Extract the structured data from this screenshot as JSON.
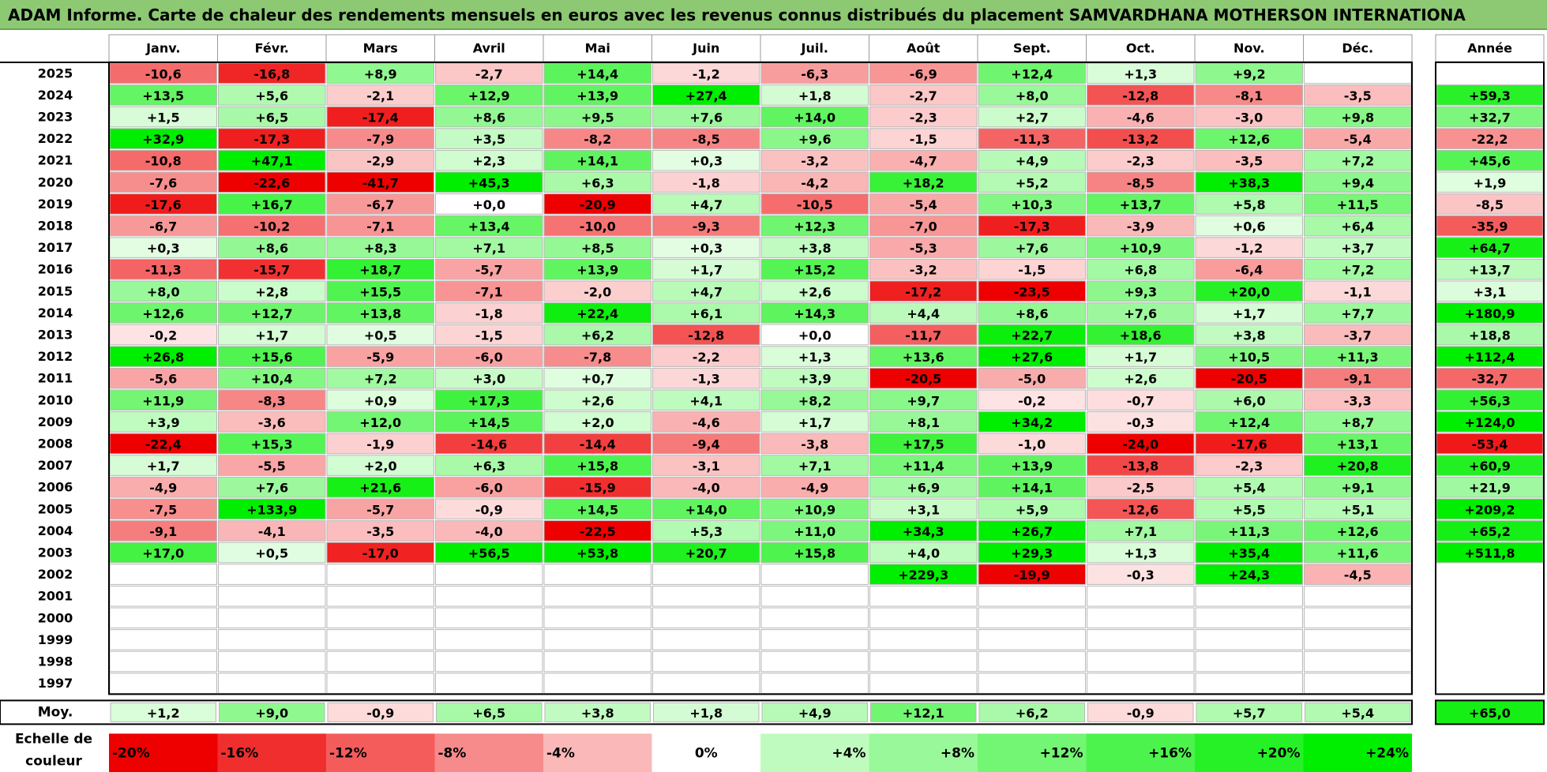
{
  "title": "ADAM Informe. Carte de chaleur des rendements mensuels en euros avec les revenus connus distribués du placement SAMVARDHANA MOTHERSON INTERNATIONA",
  "colors": {
    "positive": "#00ee00",
    "negative": "#ee0000",
    "neutral": "#ffffff",
    "title_bg": "#8cc972"
  },
  "chart_data": {
    "type": "heatmap",
    "title": "ADAM Informe. Carte de chaleur des rendements mensuels en euros avec les revenus connus distribués du placement SAMVARDHANA MOTHERSON INTERNATIONA",
    "months": [
      "Janv.",
      "Févr.",
      "Mars",
      "Avril",
      "Mai",
      "Juin",
      "Juil.",
      "Août",
      "Sept.",
      "Oct.",
      "Nov.",
      "Déc."
    ],
    "year_label": "Année",
    "avg_label": "Moy.",
    "years": [
      "2025",
      "2024",
      "2023",
      "2022",
      "2021",
      "2020",
      "2019",
      "2018",
      "2017",
      "2016",
      "2015",
      "2014",
      "2013",
      "2012",
      "2011",
      "2010",
      "2009",
      "2008",
      "2007",
      "2006",
      "2005",
      "2004",
      "2003",
      "2002",
      "2001",
      "2000",
      "1999",
      "1998",
      "1997"
    ],
    "values": [
      [
        "-10,6",
        "-16,8",
        "+8,9",
        "-2,7",
        "+14,4",
        "-1,2",
        "-6,3",
        "-6,9",
        "+12,4",
        "+1,3",
        "+9,2",
        ""
      ],
      [
        "+13,5",
        "+5,6",
        "-2,1",
        "+12,9",
        "+13,9",
        "+27,4",
        "+1,8",
        "-2,7",
        "+8,0",
        "-12,8",
        "-8,1",
        "-3,5"
      ],
      [
        "+1,5",
        "+6,5",
        "-17,4",
        "+8,6",
        "+9,5",
        "+7,6",
        "+14,0",
        "-2,3",
        "+2,7",
        "-4,6",
        "-3,0",
        "+9,8"
      ],
      [
        "+32,9",
        "-17,3",
        "-7,9",
        "+3,5",
        "-8,2",
        "-8,5",
        "+9,6",
        "-1,5",
        "-11,3",
        "-13,2",
        "+12,6",
        "-5,4"
      ],
      [
        "-10,8",
        "+47,1",
        "-2,9",
        "+2,3",
        "+14,1",
        "+0,3",
        "-3,2",
        "-4,7",
        "+4,9",
        "-2,3",
        "-3,5",
        "+7,2"
      ],
      [
        "-7,6",
        "-22,6",
        "-41,7",
        "+45,3",
        "+6,3",
        "-1,8",
        "-4,2",
        "+18,2",
        "+5,2",
        "-8,5",
        "+38,3",
        "+9,4"
      ],
      [
        "-17,6",
        "+16,7",
        "-6,7",
        "+0,0",
        "-20,9",
        "+4,7",
        "-10,5",
        "-5,4",
        "+10,3",
        "+13,7",
        "+5,8",
        "+11,5"
      ],
      [
        "-6,7",
        "-10,2",
        "-7,1",
        "+13,4",
        "-10,0",
        "-9,3",
        "+12,3",
        "-7,0",
        "-17,3",
        "-3,9",
        "+0,6",
        "+6,4"
      ],
      [
        "+0,3",
        "+8,6",
        "+8,3",
        "+7,1",
        "+8,5",
        "+0,3",
        "+3,8",
        "-5,3",
        "+7,6",
        "+10,9",
        "-1,2",
        "+3,7"
      ],
      [
        "-11,3",
        "-15,7",
        "+18,7",
        "-5,7",
        "+13,9",
        "+1,7",
        "+15,2",
        "-3,2",
        "-1,5",
        "+6,8",
        "-6,4",
        "+7,2"
      ],
      [
        "+8,0",
        "+2,8",
        "+15,5",
        "-7,1",
        "-2,0",
        "+4,7",
        "+2,6",
        "-17,2",
        "-23,5",
        "+9,3",
        "+20,0",
        "-1,1"
      ],
      [
        "+12,6",
        "+12,7",
        "+13,8",
        "-1,8",
        "+22,4",
        "+6,1",
        "+14,3",
        "+4,4",
        "+8,6",
        "+7,6",
        "+1,7",
        "+7,7"
      ],
      [
        "-0,2",
        "+1,7",
        "+0,5",
        "-1,5",
        "+6,2",
        "-12,8",
        "+0,0",
        "-11,7",
        "+22,7",
        "+18,6",
        "+3,8",
        "-3,7"
      ],
      [
        "+26,8",
        "+15,6",
        "-5,9",
        "-6,0",
        "-7,8",
        "-2,2",
        "+1,3",
        "+13,6",
        "+27,6",
        "+1,7",
        "+10,5",
        "+11,3"
      ],
      [
        "-5,6",
        "+10,4",
        "+7,2",
        "+3,0",
        "+0,7",
        "-1,3",
        "+3,9",
        "-20,5",
        "-5,0",
        "+2,6",
        "-20,5",
        "-9,1"
      ],
      [
        "+11,9",
        "-8,3",
        "+0,9",
        "+17,3",
        "+2,6",
        "+4,1",
        "+8,2",
        "+9,7",
        "-0,2",
        "-0,7",
        "+6,0",
        "-3,3"
      ],
      [
        "+3,9",
        "-3,6",
        "+12,0",
        "+14,5",
        "+2,0",
        "-4,6",
        "+1,7",
        "+8,1",
        "+34,2",
        "-0,3",
        "+12,4",
        "+8,7"
      ],
      [
        "-22,4",
        "+15,3",
        "-1,9",
        "-14,6",
        "-14,4",
        "-9,4",
        "-3,8",
        "+17,5",
        "-1,0",
        "-24,0",
        "-17,6",
        "+13,1"
      ],
      [
        "+1,7",
        "-5,5",
        "+2,0",
        "+6,3",
        "+15,8",
        "-3,1",
        "+7,1",
        "+11,4",
        "+13,9",
        "-13,8",
        "-2,3",
        "+20,8"
      ],
      [
        "-4,9",
        "+7,6",
        "+21,6",
        "-6,0",
        "-15,9",
        "-4,0",
        "-4,9",
        "+6,9",
        "+14,1",
        "-2,5",
        "+5,4",
        "+9,1"
      ],
      [
        "-7,5",
        "+133,9",
        "-5,7",
        "-0,9",
        "+14,5",
        "+14,0",
        "+10,9",
        "+3,1",
        "+5,9",
        "-12,6",
        "+5,5",
        "+5,1"
      ],
      [
        "-9,1",
        "-4,1",
        "-3,5",
        "-4,0",
        "-22,5",
        "+5,3",
        "+11,0",
        "+34,3",
        "+26,7",
        "+7,1",
        "+11,3",
        "+12,6"
      ],
      [
        "+17,0",
        "+0,5",
        "-17,0",
        "+56,5",
        "+53,8",
        "+20,7",
        "+15,8",
        "+4,0",
        "+29,3",
        "+1,3",
        "+35,4",
        "+11,6"
      ],
      [
        "",
        "",
        "",
        "",
        "",
        "",
        "",
        "+229,3",
        "-19,9",
        "-0,3",
        "+24,3",
        "-4,5"
      ],
      [
        "",
        "",
        "",
        "",
        "",
        "",
        "",
        "",
        "",
        "",
        "",
        ""
      ],
      [
        "",
        "",
        "",
        "",
        "",
        "",
        "",
        "",
        "",
        "",
        "",
        ""
      ],
      [
        "",
        "",
        "",
        "",
        "",
        "",
        "",
        "",
        "",
        "",
        "",
        ""
      ],
      [
        "",
        "",
        "",
        "",
        "",
        "",
        "",
        "",
        "",
        "",
        "",
        ""
      ],
      [
        "",
        "",
        "",
        "",
        "",
        "",
        "",
        "",
        "",
        "",
        "",
        ""
      ]
    ],
    "annual": [
      "",
      "+59,3",
      "+32,7",
      "-22,2",
      "+45,6",
      "+1,9",
      "-8,5",
      "-35,9",
      "+64,7",
      "+13,7",
      "+3,1",
      "+180,9",
      "+18,8",
      "+112,4",
      "-32,7",
      "+56,3",
      "+124,0",
      "-53,4",
      "+60,9",
      "+21,9",
      "+209,2",
      "+65,2",
      "+511,8",
      "",
      "",
      "",
      "",
      "",
      ""
    ],
    "average": [
      "+1,2",
      "+9,0",
      "-0,9",
      "+6,5",
      "+3,8",
      "+1,8",
      "+4,9",
      "+12,1",
      "+6,2",
      "-0,9",
      "+5,7",
      "+5,4"
    ],
    "average_annual": "+65,0",
    "scale_label": "Echelle de couleur",
    "scale": [
      "-20%",
      "-16%",
      "-12%",
      "-8%",
      "-4%",
      "0%",
      "+4%",
      "+8%",
      "+12%",
      "+16%",
      "+20%",
      "+24%"
    ]
  }
}
